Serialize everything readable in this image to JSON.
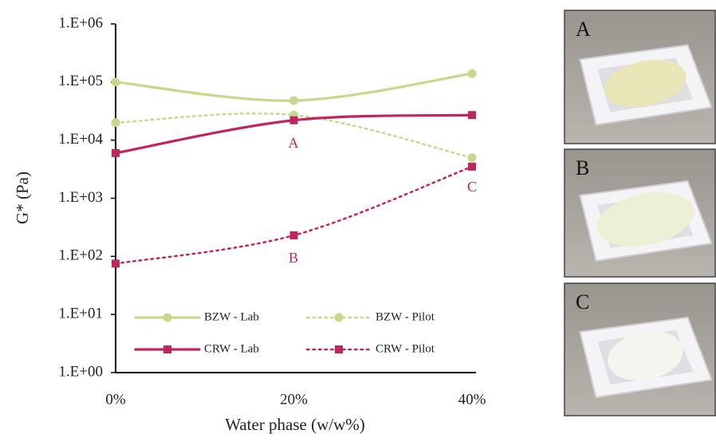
{
  "chart_data": {
    "type": "line",
    "x_label": "Water phase (w/w%)",
    "y_label": "G* (Pa)",
    "categories": [
      "0%",
      "20%",
      "40%"
    ],
    "log_y": true,
    "ylim": [
      1,
      1000000
    ],
    "yticks": [
      {
        "value": 1,
        "label": "1.E+00"
      },
      {
        "value": 10,
        "label": "1.E+01"
      },
      {
        "value": 100,
        "label": "1.E+02"
      },
      {
        "value": 1000,
        "label": "1.E+03"
      },
      {
        "value": 10000,
        "label": "1.E+04"
      },
      {
        "value": 100000,
        "label": "1.E+05"
      },
      {
        "value": 1000000,
        "label": "1.E+06"
      }
    ],
    "smooth": true,
    "legend": "bottom",
    "series": [
      {
        "name": "BZW - Lab",
        "color": "#c5d98c",
        "dash": "solid",
        "marker": "circle",
        "values": [
          100000,
          48000,
          140000
        ]
      },
      {
        "name": "BZW - Pilot",
        "color": "#c5d98c",
        "dash": "dotted",
        "marker": "circle",
        "values": [
          20000,
          27000,
          5000
        ]
      },
      {
        "name": "CRW - Lab",
        "color": "#c0265e",
        "dash": "solid",
        "marker": "square",
        "values": [
          6000,
          22000,
          27000
        ]
      },
      {
        "name": "CRW - Pilot",
        "color": "#c0265e",
        "dash": "dotted",
        "marker": "square",
        "values": [
          75,
          230,
          3500
        ]
      }
    ],
    "annotations": [
      {
        "text": "A"
      },
      {
        "text": "B"
      },
      {
        "text": "C"
      }
    ]
  },
  "panels": [
    {
      "label": "A"
    },
    {
      "label": "B"
    },
    {
      "label": "C"
    }
  ]
}
